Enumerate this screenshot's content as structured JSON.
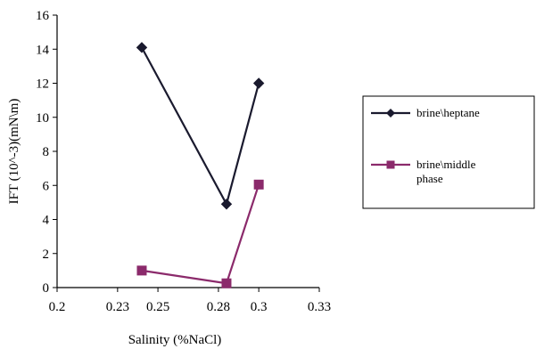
{
  "chart_data": {
    "type": "line",
    "xlabel": "Salinity (%NaCl)",
    "ylabel": "IFT (10^-3)(mN\\m)",
    "xlim": [
      0.2,
      0.33
    ],
    "ylim": [
      0,
      16
    ],
    "x_ticks": [
      0.2,
      0.23,
      0.25,
      0.28,
      0.3,
      0.33
    ],
    "y_ticks": [
      0,
      2,
      4,
      6,
      8,
      10,
      12,
      14,
      16
    ],
    "grid": false,
    "legend_position": "right",
    "series": [
      {
        "name": "brine\\heptane",
        "color": "#1a1a2e",
        "marker": "diamond",
        "x": [
          0.242,
          0.284,
          0.3
        ],
        "y": [
          14.1,
          4.9,
          12.0
        ]
      },
      {
        "name": "brine\\middle phase",
        "color": "#8b2a6b",
        "marker": "square",
        "x": [
          0.242,
          0.284,
          0.3
        ],
        "y": [
          1.0,
          0.25,
          6.05
        ]
      }
    ]
  }
}
